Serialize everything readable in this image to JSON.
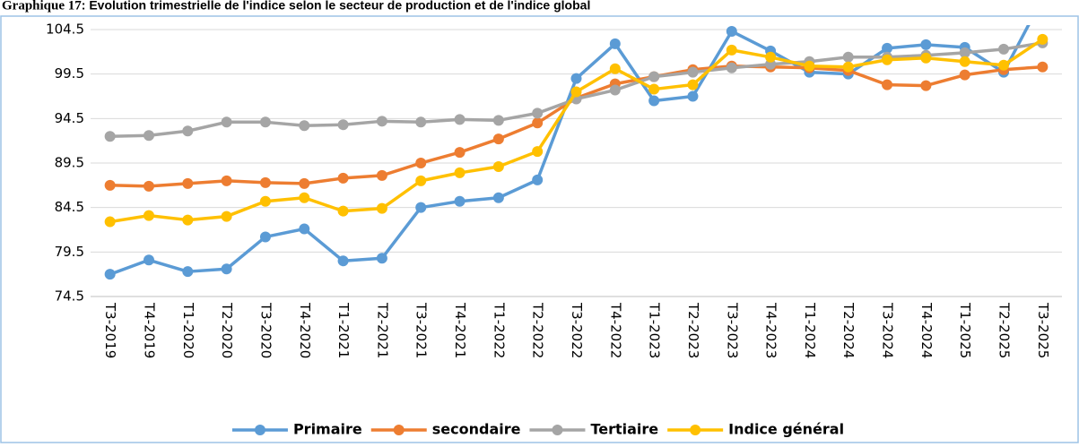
{
  "chart_data": {
    "type": "line",
    "title": "Graphique 17",
    "subtitle": ": Évolution trimestrielle de l'indice selon le secteur de production et de l'indice global",
    "categories": [
      "T3-2019",
      "T4-2019",
      "T1-2020",
      "T2-2020",
      "T3-2020",
      "T4-2020",
      "T1-2021",
      "T2-2021",
      "T3-2021",
      "T4-2021",
      "T1-2022",
      "T2-2022",
      "T3-2022",
      "T4-2022",
      "T1-2023",
      "T2-2023",
      "T3-2023",
      "T4-2023",
      "T1-2024",
      "T2-2024",
      "T3-2024",
      "T4-2024",
      "T1-2025",
      "T2-2025",
      "T3-2025"
    ],
    "series": [
      {
        "name": "Primaire",
        "color": "#5b9bd5",
        "values": [
          77.0,
          78.6,
          77.3,
          77.6,
          81.2,
          82.1,
          78.5,
          78.8,
          84.5,
          85.2,
          85.6,
          87.6,
          99.0,
          102.9,
          96.5,
          97.0,
          104.3,
          102.1,
          99.7,
          99.5,
          102.4,
          102.8,
          102.5,
          99.7,
          108.0
        ]
      },
      {
        "name": "secondaire",
        "color": "#ed7d31",
        "values": [
          87.0,
          86.9,
          87.2,
          87.5,
          87.3,
          87.2,
          87.8,
          88.1,
          89.5,
          90.7,
          92.2,
          94.0,
          96.8,
          98.4,
          99.2,
          100.0,
          100.4,
          100.3,
          100.2,
          99.9,
          98.3,
          98.2,
          99.4,
          100.0,
          100.3
        ]
      },
      {
        "name": "Tertiaire",
        "color": "#a5a5a5",
        "values": [
          92.5,
          92.6,
          93.1,
          94.1,
          94.1,
          93.7,
          93.8,
          94.2,
          94.1,
          94.4,
          94.3,
          95.1,
          96.7,
          97.7,
          99.2,
          99.7,
          100.2,
          100.6,
          100.9,
          101.4,
          101.4,
          101.6,
          101.9,
          102.3,
          103.0
        ]
      },
      {
        "name": "Indice général",
        "color": "#ffc000",
        "values": [
          82.9,
          83.6,
          83.1,
          83.5,
          85.2,
          85.6,
          84.1,
          84.4,
          87.5,
          88.4,
          89.1,
          90.8,
          97.5,
          100.1,
          97.8,
          98.3,
          102.2,
          101.4,
          100.4,
          100.3,
          101.1,
          101.3,
          100.9,
          100.5,
          103.4
        ]
      }
    ],
    "ylim": [
      74.5,
      104.5
    ],
    "yticks": [
      74.5,
      79.5,
      84.5,
      89.5,
      94.5,
      99.5,
      104.5
    ],
    "grid": true,
    "legend": "bottom"
  }
}
